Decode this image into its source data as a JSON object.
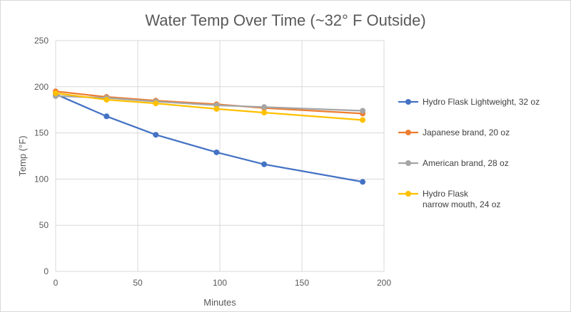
{
  "chart_data": {
    "type": "line",
    "title": "Water Temp Over Time (~32° F Outside)",
    "xlabel": "Minutes",
    "ylabel": "Temp  (°F)",
    "xlim": [
      0,
      200
    ],
    "ylim": [
      0,
      250
    ],
    "x_ticks": [
      0,
      50,
      100,
      150,
      200
    ],
    "y_ticks": [
      0,
      50,
      100,
      150,
      200,
      250
    ],
    "grid": true,
    "legend_position": "right",
    "series": [
      {
        "name": "Hydro Flask Lightweight, 32 oz",
        "name_lines": [
          "Hydro Flask Lightweight, 32 oz"
        ],
        "color": "#4472c4",
        "x": [
          0,
          31,
          61,
          98,
          127,
          187
        ],
        "y": [
          192,
          168,
          148,
          129,
          116,
          97
        ]
      },
      {
        "name": "Japanese brand, 20 oz",
        "name_lines": [
          "Japanese brand, 20 oz"
        ],
        "color": "#ed7d31",
        "x": [
          0,
          31,
          61,
          98,
          127,
          187
        ],
        "y": [
          195,
          189,
          185,
          181,
          177,
          171
        ]
      },
      {
        "name": "American brand, 28 oz",
        "name_lines": [
          "American brand, 28 oz"
        ],
        "color": "#a5a5a5",
        "x": [
          0,
          31,
          61,
          98,
          127,
          187
        ],
        "y": [
          190,
          188,
          184,
          180,
          178,
          174
        ]
      },
      {
        "name": "Hydro Flask narrow mouth, 24 oz",
        "name_lines": [
          "Hydro Flask",
          "narrow mouth, 24 oz"
        ],
        "color": "#ffc000",
        "x": [
          0,
          31,
          61,
          98,
          127,
          187
        ],
        "y": [
          193,
          186,
          182,
          176,
          172,
          164
        ]
      }
    ]
  }
}
